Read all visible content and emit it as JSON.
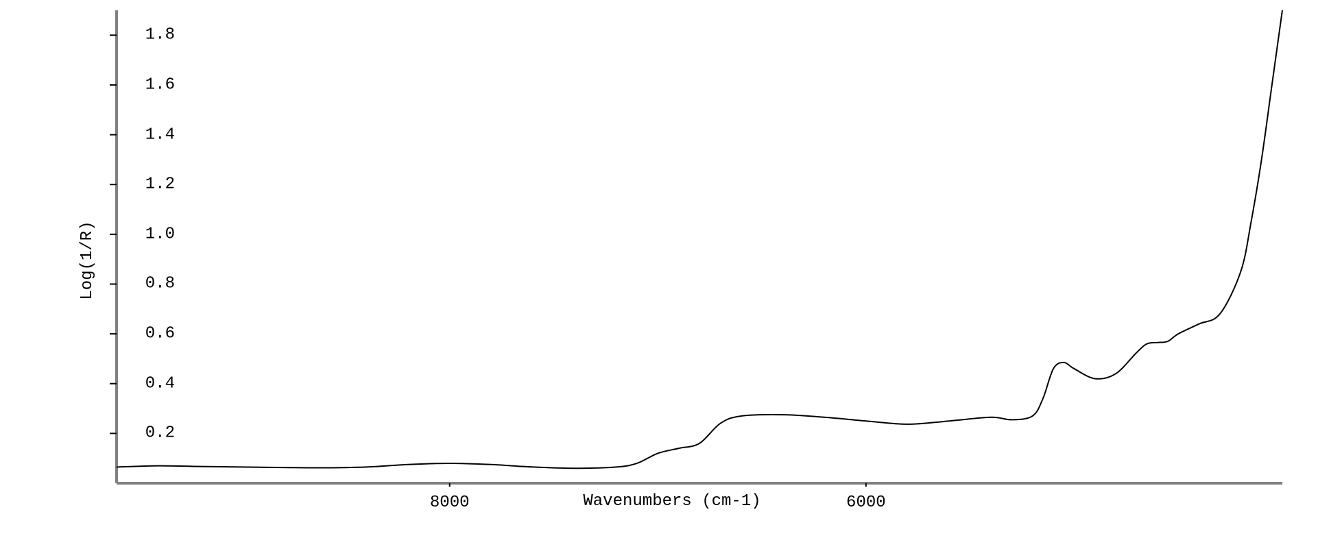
{
  "chart": {
    "type": "line",
    "ylabel": "Log(1/R)",
    "xlabel": "Wavenumbers (cm-1)",
    "label_fontsize": 24,
    "tick_fontsize": 24,
    "background_color": "#ffffff",
    "line_color": "#000000",
    "line_width": 2,
    "axis_color": "#808080",
    "axis_width": 4,
    "ylim": [
      0.0,
      1.9
    ],
    "xlim": [
      9600,
      4000
    ],
    "x_reversed": true,
    "yticks": [
      0.2,
      0.4,
      0.6,
      0.8,
      1.0,
      1.2,
      1.4,
      1.6,
      1.8
    ],
    "ytick_labels": [
      "0.2",
      "0.4",
      "0.6",
      "0.8",
      "1.0",
      "1.2",
      "1.4",
      "1.6",
      "1.8"
    ],
    "xticks": [
      8000,
      6000
    ],
    "xtick_labels": [
      "8000",
      "6000"
    ],
    "tick_length": 10,
    "data": {
      "x": [
        9600,
        9400,
        9200,
        9000,
        8800,
        8600,
        8400,
        8200,
        8000,
        7800,
        7600,
        7400,
        7200,
        7100,
        7000,
        6900,
        6800,
        6700,
        6600,
        6400,
        6200,
        6000,
        5800,
        5600,
        5400,
        5300,
        5200,
        5150,
        5100,
        5050,
        5000,
        4900,
        4800,
        4700,
        4650,
        4600,
        4550,
        4500,
        4400,
        4300,
        4200,
        4150,
        4100,
        4050,
        4000
      ],
      "y": [
        0.065,
        0.07,
        0.067,
        0.065,
        0.063,
        0.062,
        0.065,
        0.075,
        0.08,
        0.075,
        0.065,
        0.06,
        0.065,
        0.08,
        0.12,
        0.14,
        0.16,
        0.24,
        0.27,
        0.275,
        0.265,
        0.25,
        0.237,
        0.25,
        0.265,
        0.255,
        0.27,
        0.34,
        0.46,
        0.485,
        0.46,
        0.42,
        0.44,
        0.525,
        0.56,
        0.565,
        0.57,
        0.6,
        0.64,
        0.68,
        0.85,
        1.05,
        1.3,
        1.6,
        1.9
      ]
    }
  }
}
